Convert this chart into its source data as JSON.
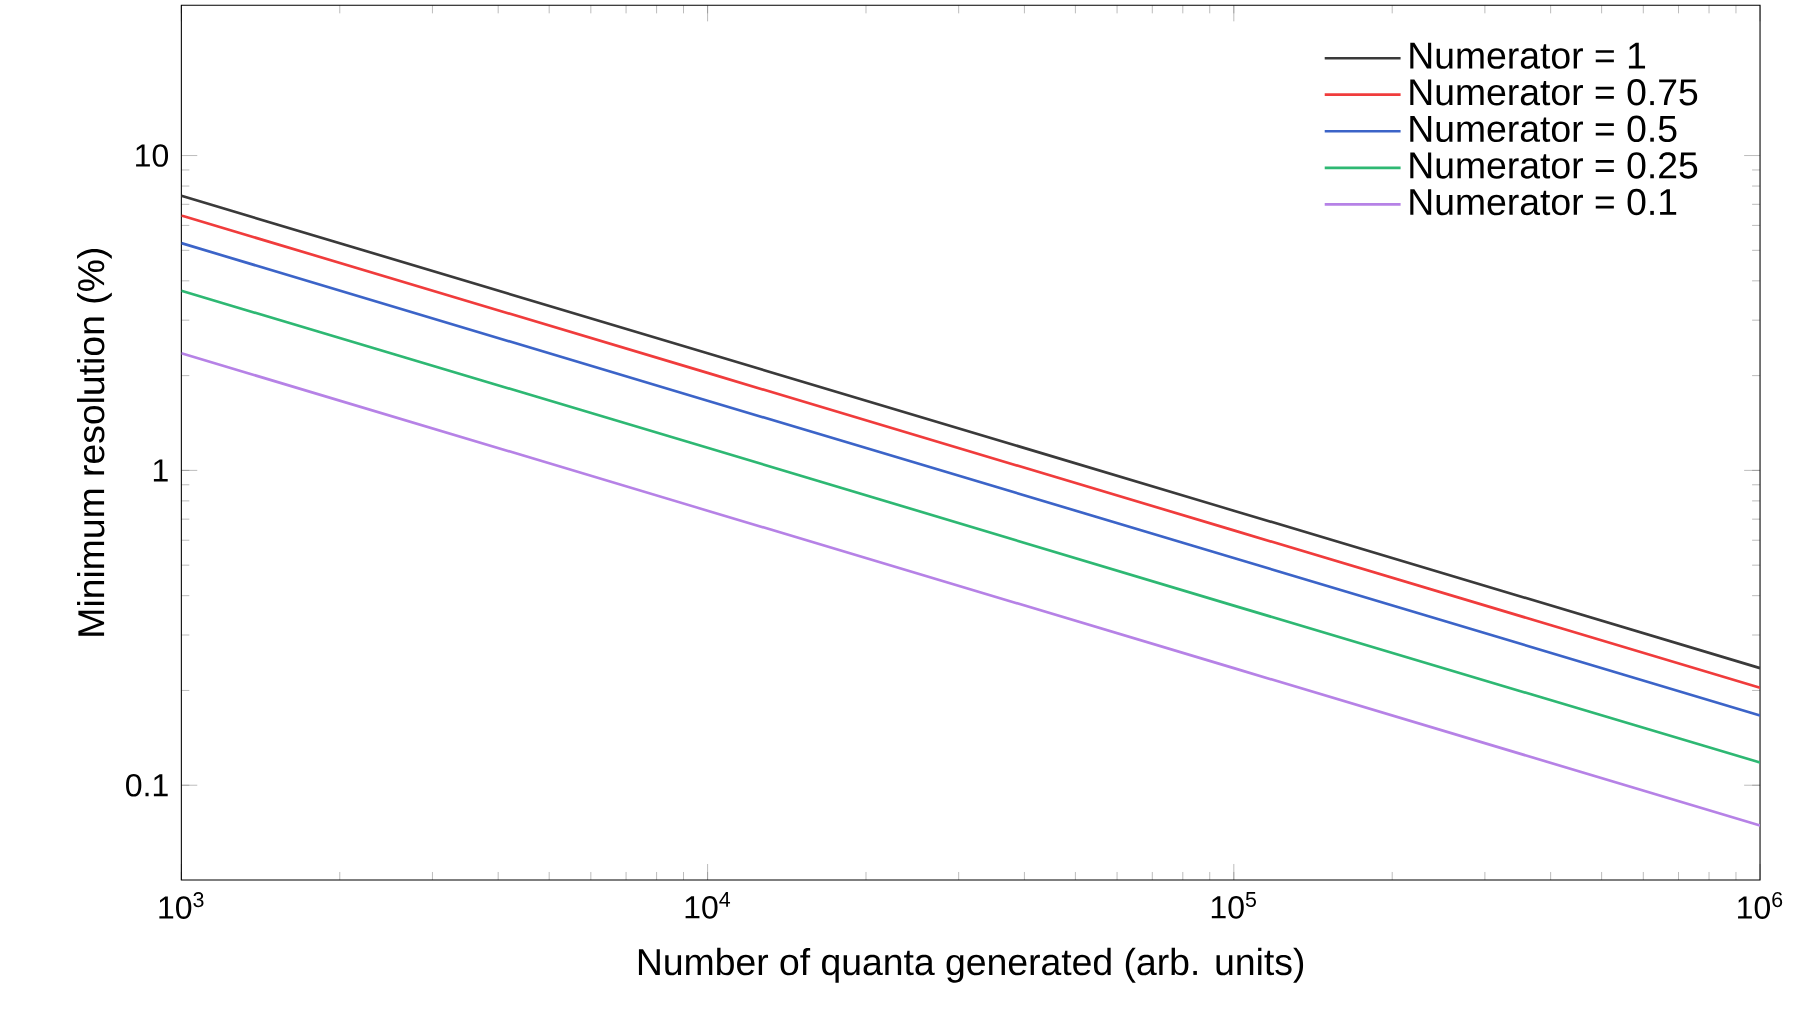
{
  "chart_data": {
    "type": "line",
    "xlabel": "Number of quanta generated (arb. units)",
    "ylabel": "Minimum resolution (%)",
    "log": "xy",
    "x": [
      1000,
      10000,
      100000,
      1000000
    ],
    "series": [
      {
        "name": "Numerator = 1",
        "color": "#3a3a3a",
        "values": [
          7.45,
          2.355,
          0.745,
          0.2355
        ]
      },
      {
        "name": "Numerator = 0.75",
        "color": "#f03c3c",
        "values": [
          6.45,
          2.04,
          0.645,
          0.204
        ]
      },
      {
        "name": "Numerator = 0.5",
        "color": "#3c64c8",
        "values": [
          5.27,
          1.665,
          0.527,
          0.1665
        ]
      },
      {
        "name": "Numerator = 0.25",
        "color": "#2eb873",
        "values": [
          3.72,
          1.18,
          0.372,
          0.118
        ]
      },
      {
        "name": "Numerator = 0.1",
        "color": "#b682e6",
        "values": [
          2.355,
          0.745,
          0.2355,
          0.0745
        ]
      }
    ],
    "xlim": [
      1000,
      1000000
    ],
    "ylim": [
      0.05,
      30
    ],
    "xticks": [
      {
        "value": 1000,
        "label": "10$^{3}$"
      },
      {
        "value": 10000,
        "label": "10$^{4}$"
      },
      {
        "value": 100000,
        "label": "10$^{5}$"
      },
      {
        "value": 1000000,
        "label": "10$^{6}$"
      }
    ],
    "yticks": [
      0.1,
      1,
      10
    ],
    "legend": "top right"
  }
}
